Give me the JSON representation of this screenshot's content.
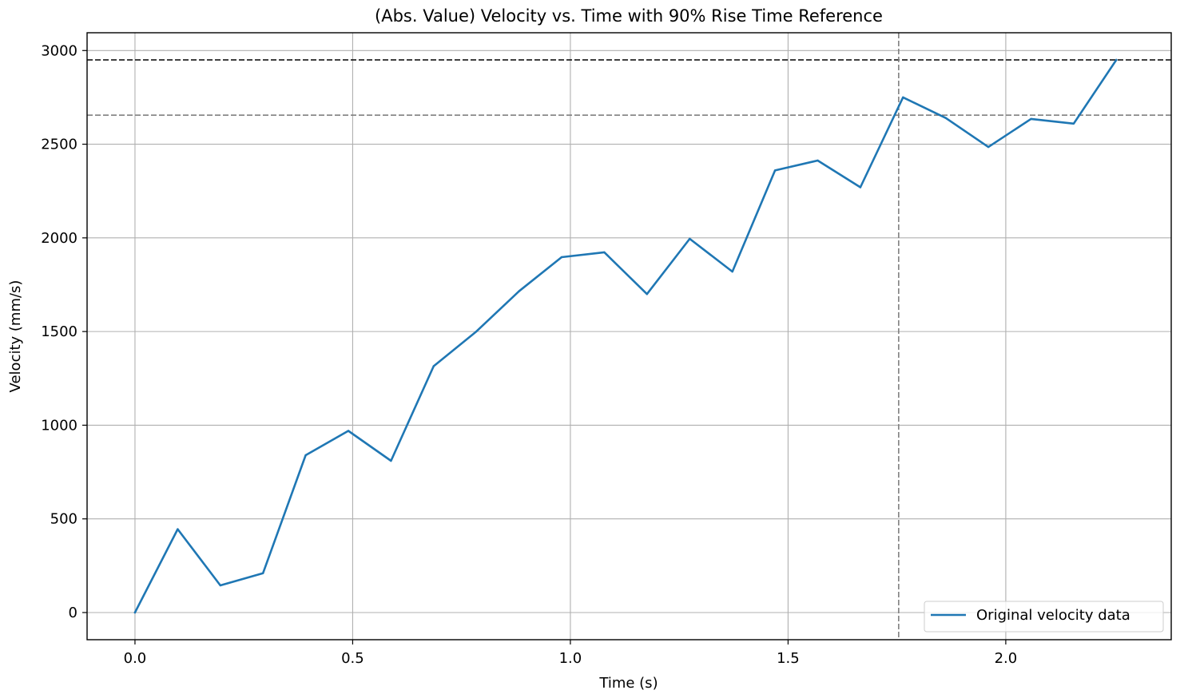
{
  "chart_data": {
    "type": "line",
    "title": "(Abs. Value) Velocity vs. Time with 90% Rise Time Reference",
    "xlabel": "Time (s)",
    "ylabel": "Velocity (mm/s)",
    "xlim": [
      -0.11,
      2.38
    ],
    "ylim": [
      -145,
      3095
    ],
    "xticks": [
      0.0,
      0.5,
      1.0,
      1.5,
      2.0
    ],
    "xtick_labels": [
      "0.0",
      "0.5",
      "1.0",
      "1.5",
      "2.0"
    ],
    "yticks": [
      0,
      500,
      1000,
      1500,
      2000,
      2500,
      3000
    ],
    "ytick_labels": [
      "0",
      "500",
      "1000",
      "1500",
      "2000",
      "2500",
      "3000"
    ],
    "grid": true,
    "legend_position": "lower-right",
    "series": [
      {
        "name": "Original velocity data",
        "color": "#1f77b4",
        "x": [
          0.0,
          0.098,
          0.196,
          0.294,
          0.392,
          0.49,
          0.588,
          0.686,
          0.784,
          0.882,
          0.98,
          1.078,
          1.176,
          1.274,
          1.372,
          1.47,
          1.568,
          1.666,
          1.764,
          1.862,
          1.96,
          2.058,
          2.156,
          2.254
        ],
        "y": [
          0,
          445,
          145,
          210,
          840,
          970,
          810,
          1315,
          1500,
          1715,
          1897,
          1923,
          1700,
          1995,
          1820,
          2360,
          2413,
          2270,
          2750,
          2640,
          2485,
          2635,
          2610,
          2950
        ]
      }
    ],
    "reference_lines": [
      {
        "orientation": "horizontal",
        "value": 2950,
        "color": "#000000",
        "style": "dashed"
      },
      {
        "orientation": "horizontal",
        "value": 2655,
        "color": "#808080",
        "style": "dashed"
      },
      {
        "orientation": "vertical",
        "value": 1.754,
        "color": "#808080",
        "style": "dashed"
      }
    ]
  }
}
